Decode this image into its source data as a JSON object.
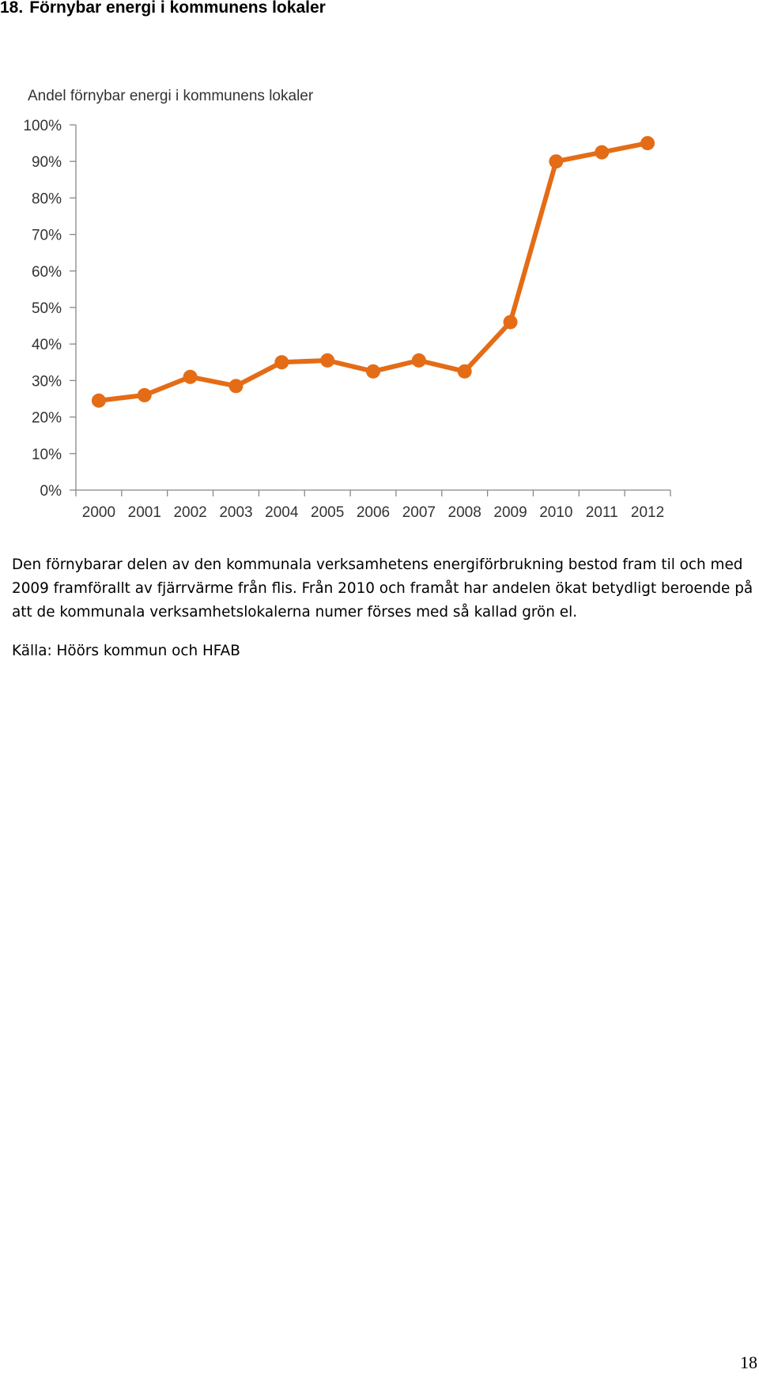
{
  "heading": {
    "number": "18.",
    "title": "Förnybar energi i kommunens lokaler"
  },
  "chart_data": {
    "type": "line",
    "title": "Andel förnybar energi i kommunens lokaler",
    "xlabel": "",
    "ylabel": "",
    "categories": [
      "2000",
      "2001",
      "2002",
      "2003",
      "2004",
      "2005",
      "2006",
      "2007",
      "2008",
      "2009",
      "2010",
      "2011",
      "2012"
    ],
    "values": [
      24.5,
      26,
      31,
      28.5,
      35,
      35.5,
      32.5,
      35.5,
      32.5,
      46,
      90,
      92.5,
      95
    ],
    "ylim": [
      0,
      100
    ],
    "yticks": [
      "0%",
      "10%",
      "20%",
      "30%",
      "40%",
      "50%",
      "60%",
      "70%",
      "80%",
      "90%",
      "100%"
    ],
    "grid": false,
    "legend": "none",
    "color": "#E46C16"
  },
  "description": "Den förnybarar delen av den kommunala verksamhetens energiförbrukning bestod fram til och med 2009 framförallt av fjärrvärme från flis. Från 2010 och framåt har andelen ökat betydligt beroende på att de kommunala verksamhetslokalerna numer förses med så kallad grön el.",
  "source": "Källa: Höörs kommun och HFAB",
  "page_number": "18"
}
